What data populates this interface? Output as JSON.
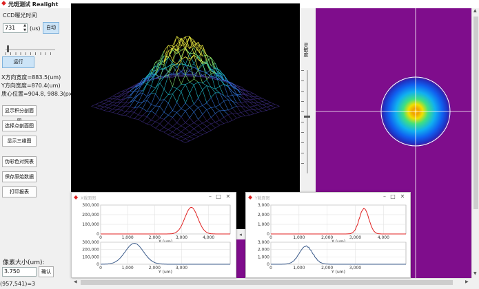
{
  "window": {
    "title": "光斑测试 Realight"
  },
  "left": {
    "exposure_label": "CCD曝光时间",
    "exposure_value": "731",
    "exposure_unit": "(us)",
    "auto_button": "自动",
    "run_button": "运行",
    "x_width": "X方向宽度=883.5(um)",
    "y_width": "Y方向宽度=870.4(um)",
    "centroid": "质心位置=904.8,  988.3(px)",
    "btn_integral": "显示积分剖面图",
    "btn_point": "选择点剖面图",
    "btn_3d": "显示三维图",
    "btn_pseudocolor": "伪彩色对照表",
    "btn_save_raw": "保存原始数据",
    "btn_print": "打印报表",
    "pixel_label": "像素大小(um):",
    "pixel_value": "3.750",
    "confirm_button": "确认",
    "status": "(957,541)=3"
  },
  "vscale": {
    "label": "灵敏度"
  },
  "x_profile_window": {
    "title": "X截面图",
    "top_plot": {
      "y_ticks": [
        "300,000",
        "200,000",
        "100,000",
        "0"
      ],
      "x_ticks": [
        "0",
        "1,000",
        "2,000",
        "3,000",
        "4,000"
      ],
      "xlabel": "X (um)",
      "line_color": "#e02020"
    },
    "bottom_plot": {
      "y_ticks": [
        "300,000",
        "200,000",
        "100,000",
        "0"
      ],
      "x_ticks": [
        "0",
        "1,000",
        "2,000",
        "3,000"
      ],
      "xlabel": "Y (um)",
      "line_color": "#3a5a8a"
    }
  },
  "y_profile_window": {
    "title": "Y截面图",
    "top_plot": {
      "y_ticks": [
        "3,000",
        "2,000",
        "1,000",
        "0"
      ],
      "x_ticks": [
        "0",
        "1,000",
        "2,000",
        "3,000",
        "4,000"
      ],
      "xlabel": "X (um)",
      "line_color": "#e02020"
    },
    "bottom_plot": {
      "y_ticks": [
        "3,000",
        "2,000",
        "1,000",
        "0"
      ],
      "x_ticks": [
        "0",
        "1,000",
        "2,000",
        "3,000"
      ],
      "xlabel": "Y (um)",
      "line_color": "#3a5a8a"
    }
  },
  "colors": {
    "beam_background": "#7f0d8c",
    "view3d_background": "#000000",
    "primary_button": "#cce4f7"
  }
}
